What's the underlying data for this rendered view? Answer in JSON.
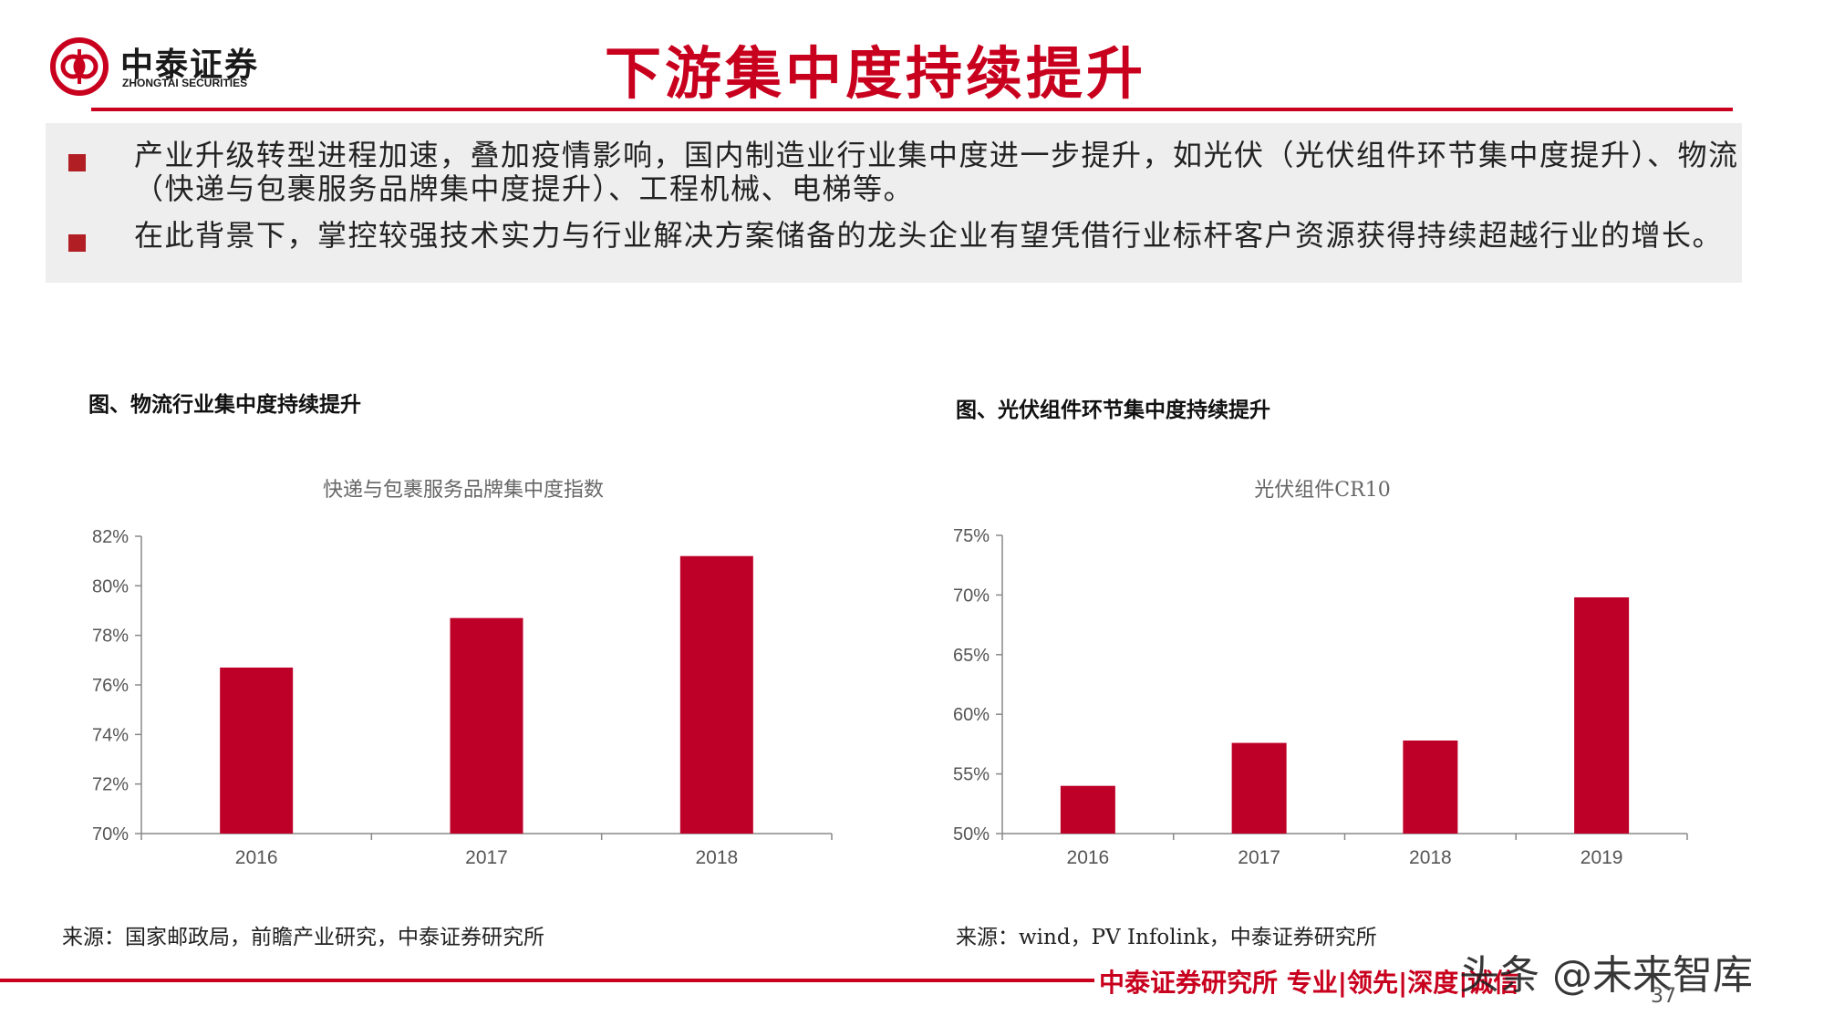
{
  "header": {
    "logo_cn": "中泰证券",
    "logo_en": "ZHONGTAI SECURITIES",
    "title": "下游集中度持续提升"
  },
  "bullets": [
    "产业升级转型进程加速，叠加疫情影响，国内制造业行业集中度进一步提升，如光伏（光伏组件环节集中度提升）、物流（快递与包裹服务品牌集中度提升）、工程机械、电梯等。",
    "在此背景下，掌控较强技术实力与行业解决方案储备的龙头企业有望凭借行业标杆客户资源获得持续超越行业的增长。"
  ],
  "charts": {
    "left": {
      "caption": "图、物流行业集中度持续提升",
      "source": "来源：国家邮政局，前瞻产业研究，中泰证券研究所"
    },
    "right": {
      "caption": "图、光伏组件环节集中度持续提升",
      "source": "来源：wind，PV Infolink，中泰证券研究所"
    }
  },
  "chart_data": [
    {
      "type": "bar",
      "title": "快递与包裹服务品牌集中度指数",
      "categories": [
        "2016",
        "2017",
        "2018"
      ],
      "values": [
        76.7,
        78.7,
        81.2
      ],
      "ylim": [
        70,
        82
      ],
      "yticks": [
        "70%",
        "72%",
        "74%",
        "76%",
        "78%",
        "80%",
        "82%"
      ],
      "color": "#be0029",
      "grid": false
    },
    {
      "type": "bar",
      "title": "光伏组件CR10",
      "categories": [
        "2016",
        "2017",
        "2018",
        "2019"
      ],
      "values": [
        54.0,
        57.6,
        57.8,
        69.8
      ],
      "ylim": [
        50,
        75
      ],
      "yticks": [
        "50%",
        "55%",
        "60%",
        "65%",
        "70%",
        "75%"
      ],
      "color": "#be0029",
      "grid": false
    }
  ],
  "footer": {
    "text": "中泰证券研究所 专业|领先|深度|诚信",
    "page": "37",
    "watermark": "头条 @未来智库"
  }
}
